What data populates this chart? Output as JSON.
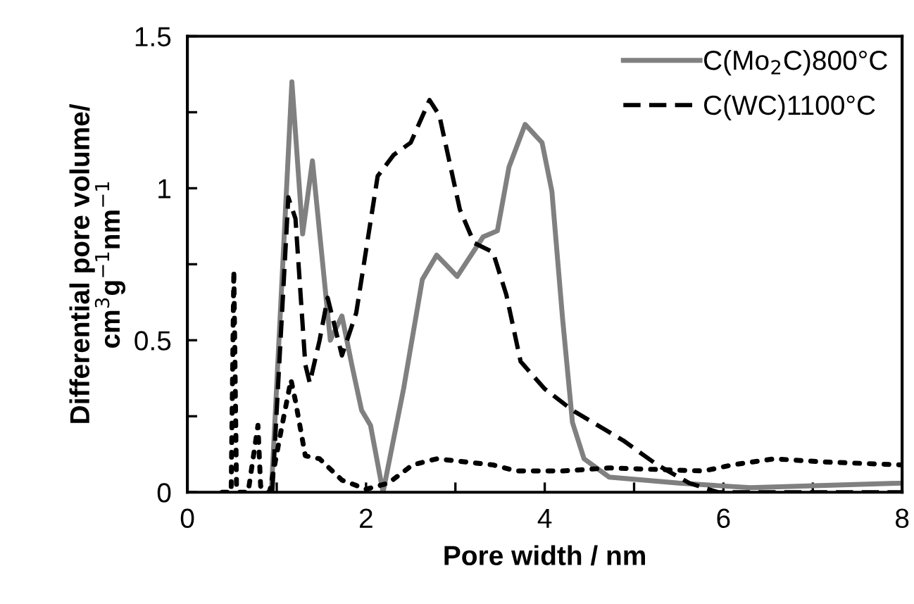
{
  "chart_data": {
    "type": "line",
    "xlabel": "Pore width / nm",
    "ylabel": "Differential pore volume/\ncm$^{3}$g$^{−1}$nm$^{−1}$",
    "xlim": [
      0,
      8
    ],
    "ylim": [
      0,
      1.5
    ],
    "xticks": [
      0,
      {
        "value": 1,
        "label": null
      },
      2,
      {
        "value": 3,
        "label": null
      },
      4,
      {
        "value": 5,
        "label": null
      },
      6,
      {
        "value": 7,
        "label": null
      },
      8
    ],
    "yticks": [
      0,
      {
        "value": 0.25,
        "label": null
      },
      0.5,
      {
        "value": 0.75,
        "label": null
      },
      1,
      {
        "value": 1.25,
        "label": null
      },
      1.5
    ],
    "grid": false,
    "legend": "top right",
    "marker": "none",
    "series": [
      {
        "name": "C(Mo$_{2}$C)800°C",
        "color": "#808080",
        "line_style": "solid",
        "x": [
          0.94,
          1.17,
          1.29,
          1.4,
          1.6,
          1.73,
          1.84,
          1.95,
          2.05,
          2.19,
          2.42,
          2.63,
          2.79,
          3.02,
          3.31,
          3.47,
          3.6,
          3.78,
          3.97,
          4.08,
          4.2,
          4.31,
          4.44,
          4.72,
          5.5,
          6.3,
          8
        ],
        "values": [
          0,
          1.35,
          0.85,
          1.09,
          0.5,
          0.58,
          0.42,
          0.27,
          0.22,
          0,
          0.34,
          0.7,
          0.78,
          0.71,
          0.84,
          0.86,
          1.07,
          1.21,
          1.15,
          0.99,
          0.57,
          0.23,
          0.11,
          0.05,
          0.03,
          0.015,
          0.03
        ]
      },
      {
        "name": "C(WC)1100°C",
        "color": "#000000",
        "line_style": "dashed",
        "x": [
          0.95,
          1.13,
          1.21,
          1.32,
          1.37,
          1.48,
          1.57,
          1.73,
          1.89,
          2.13,
          2.31,
          2.5,
          2.71,
          2.82,
          3.05,
          3.21,
          3.42,
          3.57,
          3.73,
          4.0,
          4.31,
          4.88,
          5.26,
          5.62,
          5.94,
          8
        ],
        "values": [
          0,
          0.97,
          0.9,
          0.42,
          0.36,
          0.5,
          0.64,
          0.45,
          0.59,
          1.04,
          1.11,
          1.15,
          1.29,
          1.24,
          0.93,
          0.82,
          0.79,
          0.65,
          0.43,
          0.34,
          0.27,
          0.17,
          0.09,
          0.03,
          0,
          0
        ]
      },
      {
        "color": "#000000",
        "line_style": "dotted",
        "x": [
          0.39,
          0.49,
          0.52,
          0.55,
          0.57,
          0.68,
          0.79,
          0.82,
          0.92,
          1.06,
          1.16,
          1.21,
          1.32,
          1.48,
          1.73,
          2.0,
          2.25,
          2.52,
          2.79,
          3.42,
          3.68,
          4.2,
          4.72,
          5.78,
          6.1,
          6.57,
          7.1,
          8
        ],
        "values": [
          0,
          0,
          0.73,
          0.02,
          0,
          0,
          0.22,
          0.02,
          0,
          0.22,
          0.37,
          0.3,
          0.12,
          0.11,
          0.04,
          0.01,
          0.03,
          0.09,
          0.11,
          0.09,
          0.07,
          0.07,
          0.08,
          0.07,
          0.09,
          0.11,
          0.1,
          0.09
        ]
      }
    ]
  }
}
